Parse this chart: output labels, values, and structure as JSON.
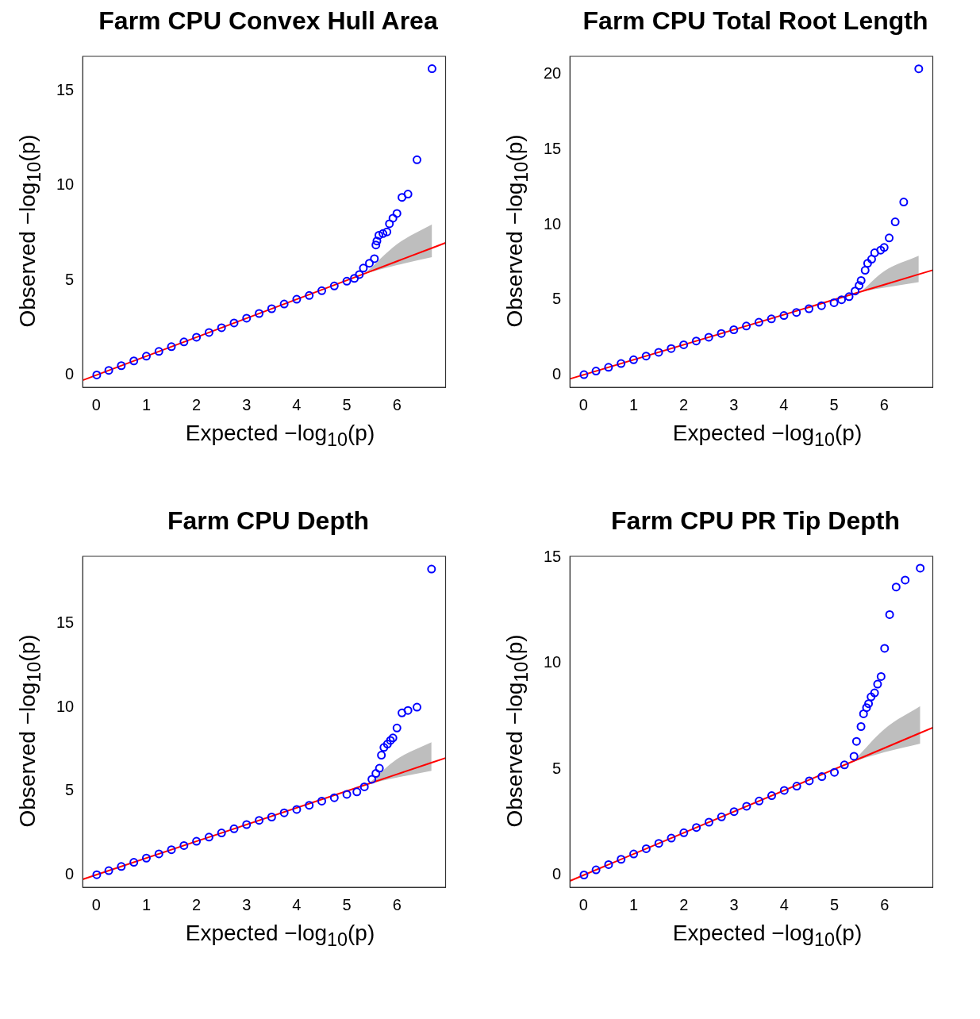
{
  "chart_data": [
    {
      "type": "scatter",
      "title": "Farm CPU Convex Hull Area",
      "xlabel": "Expected  −log$_{10}$(p)",
      "ylabel": "Observed  −log$_{10}$(p)",
      "xlim": [
        -0.27,
        6.97
      ],
      "ylim": [
        -0.64,
        16.8
      ],
      "xticks": [
        0,
        1,
        2,
        3,
        4,
        5,
        6
      ],
      "yticks": [
        0,
        5,
        10,
        15
      ],
      "series": [
        {
          "marker": "circle",
          "color": "#0000ff",
          "x": [
            0.01,
            0.25,
            0.5,
            0.75,
            1.0,
            1.25,
            1.5,
            1.75,
            2.0,
            2.25,
            2.5,
            2.75,
            3.0,
            3.25,
            3.5,
            3.75,
            4.0,
            4.25,
            4.5,
            4.75,
            5.0,
            5.15,
            5.25,
            5.33,
            5.45,
            5.55,
            5.58,
            5.6,
            5.64,
            5.72,
            5.8,
            5.85,
            5.92,
            6.0,
            6.1,
            6.22,
            6.4,
            6.7
          ],
          "values": [
            0.01,
            0.25,
            0.5,
            0.75,
            1.0,
            1.25,
            1.5,
            1.75,
            2.0,
            2.25,
            2.5,
            2.75,
            3.0,
            3.25,
            3.5,
            3.75,
            4.0,
            4.2,
            4.45,
            4.7,
            4.95,
            5.1,
            5.3,
            5.64,
            5.9,
            6.14,
            6.86,
            7.07,
            7.37,
            7.46,
            7.55,
            7.98,
            8.27,
            8.52,
            9.37,
            9.54,
            11.35,
            16.15
          ]
        },
        {
          "type": "line",
          "color": "#ff0000",
          "x": [
            -0.27,
            5.39,
            6.0,
            6.7,
            6.97
          ],
          "values": [
            -0.27,
            5.39,
            6.0,
            6.7,
            6.97
          ],
          "lower": [
            null,
            5.37,
            5.8,
            6.22,
            null
          ],
          "upper": [
            null,
            5.42,
            6.9,
            7.94,
            null
          ]
        }
      ]
    },
    {
      "type": "scatter",
      "title": "Farm CPU Total Root Length",
      "xlabel": "Expected  −log$_{10}$(p)",
      "ylabel": "Observed  −log$_{10}$(p)",
      "xlim": [
        -0.27,
        6.97
      ],
      "ylim": [
        -0.83,
        21.2
      ],
      "xticks": [
        0,
        1,
        2,
        3,
        4,
        5,
        6
      ],
      "yticks": [
        0,
        5,
        10,
        15,
        20
      ],
      "series": [
        {
          "marker": "circle",
          "color": "#0000ff",
          "x": [
            0.01,
            0.25,
            0.5,
            0.75,
            1.0,
            1.25,
            1.5,
            1.75,
            2.0,
            2.25,
            2.5,
            2.75,
            3.0,
            3.25,
            3.5,
            3.75,
            4.0,
            4.25,
            4.5,
            4.75,
            5.0,
            5.15,
            5.3,
            5.42,
            5.5,
            5.54,
            5.62,
            5.67,
            5.75,
            5.81,
            5.93,
            6.0,
            6.1,
            6.22,
            6.39,
            6.69
          ],
          "values": [
            0.01,
            0.25,
            0.5,
            0.75,
            1.0,
            1.25,
            1.5,
            1.75,
            2.0,
            2.25,
            2.5,
            2.75,
            3.0,
            3.25,
            3.5,
            3.72,
            3.95,
            4.15,
            4.4,
            4.6,
            4.8,
            5.0,
            5.2,
            5.58,
            5.95,
            6.28,
            6.96,
            7.42,
            7.7,
            8.12,
            8.3,
            8.48,
            9.11,
            10.18,
            11.5,
            20.37
          ]
        },
        {
          "type": "line",
          "color": "#ff0000",
          "x": [
            -0.27,
            5.56,
            6.0,
            6.69,
            6.97
          ],
          "values": [
            -0.27,
            5.56,
            6.0,
            6.69,
            6.97
          ],
          "lower": [
            null,
            5.55,
            5.8,
            6.17,
            null
          ],
          "upper": [
            null,
            5.6,
            6.9,
            7.92,
            null
          ]
        }
      ]
    },
    {
      "type": "scatter",
      "title": "Farm CPU Depth",
      "xlabel": "Expected  −log$_{10}$(p)",
      "ylabel": "Observed  −log$_{10}$(p)",
      "xlim": [
        -0.27,
        6.97
      ],
      "ylim": [
        -0.74,
        19.0
      ],
      "xticks": [
        0,
        1,
        2,
        3,
        4,
        5,
        6
      ],
      "yticks": [
        0,
        5,
        10,
        15
      ],
      "series": [
        {
          "marker": "circle",
          "color": "#0000ff",
          "x": [
            0.01,
            0.25,
            0.5,
            0.75,
            1.0,
            1.25,
            1.5,
            1.75,
            2.0,
            2.25,
            2.5,
            2.75,
            3.0,
            3.25,
            3.5,
            3.75,
            4.0,
            4.25,
            4.5,
            4.75,
            5.0,
            5.2,
            5.35,
            5.5,
            5.58,
            5.65,
            5.69,
            5.74,
            5.81,
            5.87,
            5.92,
            6.0,
            6.1,
            6.22,
            6.4,
            6.69
          ],
          "values": [
            0.01,
            0.25,
            0.5,
            0.75,
            1.0,
            1.25,
            1.5,
            1.75,
            2.0,
            2.25,
            2.5,
            2.75,
            3.0,
            3.25,
            3.45,
            3.7,
            3.9,
            4.15,
            4.4,
            4.6,
            4.8,
            4.95,
            5.25,
            5.7,
            6.05,
            6.36,
            7.14,
            7.6,
            7.8,
            8.02,
            8.17,
            8.76,
            9.66,
            9.81,
            10.0,
            18.24
          ]
        },
        {
          "type": "line",
          "color": "#ff0000",
          "x": [
            -0.27,
            5.45,
            6.0,
            6.69,
            6.97
          ],
          "values": [
            -0.27,
            5.45,
            6.0,
            6.69,
            6.97
          ],
          "lower": [
            null,
            5.43,
            5.8,
            6.21,
            null
          ],
          "upper": [
            null,
            5.48,
            6.9,
            7.91,
            null
          ]
        }
      ]
    },
    {
      "type": "scatter",
      "title": "Farm CPU PR Tip Depth",
      "xlabel": "Expected  −log$_{10}$(p)",
      "ylabel": "Observed  −log$_{10}$(p)",
      "xlim": [
        -0.27,
        6.96
      ],
      "ylim": [
        -0.57,
        15.04
      ],
      "xticks": [
        0,
        1,
        2,
        3,
        4,
        5,
        6
      ],
      "yticks": [
        0,
        5,
        10,
        15
      ],
      "series": [
        {
          "marker": "circle",
          "color": "#0000ff",
          "x": [
            0.01,
            0.25,
            0.5,
            0.75,
            1.0,
            1.25,
            1.5,
            1.75,
            2.0,
            2.25,
            2.5,
            2.75,
            3.0,
            3.25,
            3.5,
            3.75,
            4.0,
            4.25,
            4.5,
            4.75,
            5.0,
            5.2,
            5.39,
            5.44,
            5.53,
            5.58,
            5.64,
            5.68,
            5.73,
            5.8,
            5.86,
            5.93,
            6.0,
            6.1,
            6.23,
            6.41,
            6.71
          ],
          "values": [
            0.01,
            0.25,
            0.5,
            0.75,
            1.0,
            1.25,
            1.5,
            1.75,
            2.0,
            2.25,
            2.5,
            2.75,
            3.0,
            3.25,
            3.5,
            3.75,
            4.0,
            4.2,
            4.45,
            4.65,
            4.85,
            5.2,
            5.61,
            6.31,
            7.01,
            7.61,
            7.9,
            8.09,
            8.41,
            8.6,
            9.01,
            9.37,
            10.7,
            12.29,
            13.59,
            13.92,
            14.48
          ]
        },
        {
          "type": "line",
          "color": "#ff0000",
          "x": [
            -0.27,
            5.4,
            6.0,
            6.71,
            6.96
          ],
          "values": [
            -0.27,
            5.4,
            6.0,
            6.71,
            6.96
          ],
          "lower": [
            null,
            5.38,
            5.8,
            6.21,
            null
          ],
          "upper": [
            null,
            5.43,
            6.9,
            7.97,
            null
          ]
        }
      ]
    }
  ]
}
